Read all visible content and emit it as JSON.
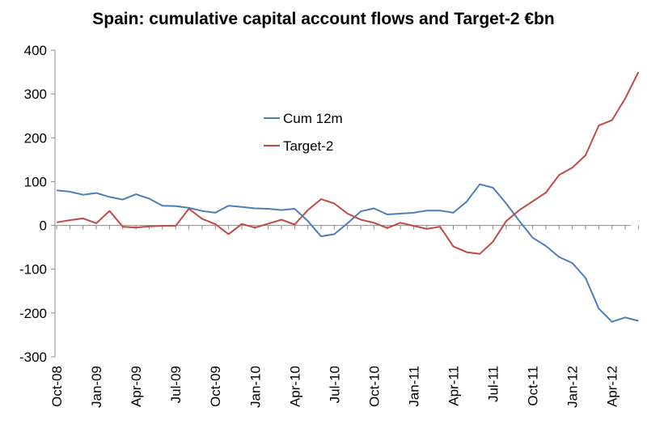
{
  "chart_data": {
    "type": "line",
    "title": "Spain: cumulative capital account flows and Target-2 €bn",
    "xlabel": "",
    "ylabel": "",
    "ylim": [
      -300,
      400
    ],
    "yticks": [
      400,
      300,
      200,
      100,
      0,
      -100,
      -200,
      -300
    ],
    "grid": false,
    "legend_position": "center",
    "x_tick_labels": [
      "Oct-08",
      "Jan-09",
      "Apr-09",
      "Jul-09",
      "Oct-09",
      "Jan-10",
      "Apr-10",
      "Jul-10",
      "Oct-10",
      "Jan-11",
      "Apr-11",
      "Jul-11",
      "Oct-11",
      "Jan-12",
      "Apr-12"
    ],
    "x_tick_step": 3,
    "series": [
      {
        "name": "Cum 12m",
        "color": "#4a7ebb",
        "values": [
          80,
          77,
          70,
          74,
          65,
          59,
          71,
          61,
          45,
          44,
          40,
          33,
          29,
          45,
          42,
          39,
          38,
          35,
          38,
          10,
          -25,
          -20,
          5,
          32,
          39,
          25,
          27,
          29,
          34,
          34,
          29,
          54,
          94,
          86,
          50,
          10,
          -28,
          -47,
          -72,
          -86,
          -120,
          -190,
          -220,
          -210,
          -218
        ]
      },
      {
        "name": "Target-2",
        "color": "#be4b48",
        "values": [
          7,
          12,
          16,
          5,
          33,
          -3,
          -5,
          -2,
          -1,
          -1,
          38,
          15,
          3,
          -20,
          3,
          -5,
          4,
          13,
          2,
          35,
          60,
          50,
          27,
          13,
          6,
          -6,
          6,
          -1,
          -8,
          -3,
          -48,
          -61,
          -65,
          -37,
          10,
          35,
          55,
          75,
          115,
          132,
          160,
          228,
          240,
          290,
          350
        ]
      }
    ]
  }
}
